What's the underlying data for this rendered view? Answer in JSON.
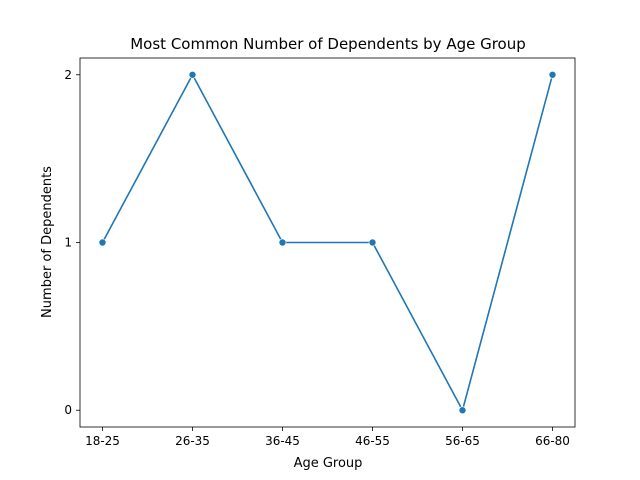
{
  "chart_data": {
    "type": "line",
    "title": "Most Common Number of Dependents by Age Group",
    "xlabel": "Age Group",
    "ylabel": "Number of Dependents",
    "categories": [
      "18-25",
      "26-35",
      "36-45",
      "46-55",
      "56-65",
      "66-80"
    ],
    "values": [
      1,
      2,
      1,
      1,
      0,
      2
    ],
    "yticks": [
      "0",
      "1",
      "2"
    ],
    "ylim": [
      -0.1,
      2.1
    ],
    "grid": false,
    "legend": "none",
    "color": "#1f77b4"
  }
}
